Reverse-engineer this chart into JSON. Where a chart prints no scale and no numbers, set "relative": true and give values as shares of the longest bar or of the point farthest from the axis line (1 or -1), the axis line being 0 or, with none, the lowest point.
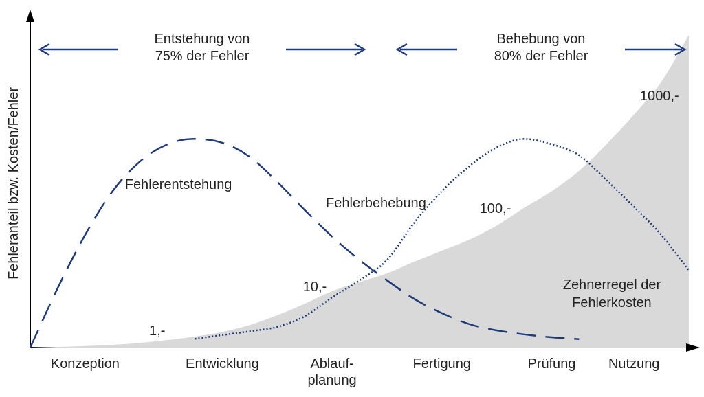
{
  "chart_data": {
    "type": "line",
    "relative": true,
    "ylabel": "Fehleranteil bzw. Kosten/Fehler",
    "categories": [
      null,
      null,
      "Konzeption",
      null,
      null,
      null,
      null,
      "Entwicklung",
      null,
      null,
      null,
      "Ablauf-\nplanung",
      null,
      null,
      null,
      "Fertigung",
      null,
      null,
      null,
      "Prüfung",
      null,
      null,
      "Nutzung",
      null,
      null
    ],
    "grid": false,
    "legend": false,
    "marker": "none",
    "series": [
      {
        "name": "Zehnerregel der Fehlerkosten",
        "type": "area",
        "color": "#d9d9d9",
        "values": [
          0,
          0.002,
          0.005,
          0.009,
          0.015,
          0.024,
          0.035,
          0.05,
          0.072,
          0.103,
          0.14,
          0.18,
          0.21,
          0.237,
          0.275,
          0.31,
          0.345,
          0.39,
          0.447,
          0.5,
          0.565,
          0.65,
          0.745,
          0.85,
          1
        ]
      },
      {
        "name": "Fehlerentstehung",
        "type": "line",
        "line_style": "dashed",
        "color": "#1f3c78",
        "values": [
          0,
          0.19,
          0.36,
          0.5,
          0.595,
          0.65,
          0.667,
          0.655,
          0.61,
          0.53,
          0.44,
          0.355,
          0.28,
          0.215,
          0.155,
          0.11,
          0.075,
          0.055,
          0.042,
          0.033,
          0.027,
          null,
          null,
          null,
          null
        ]
      },
      {
        "name": "Fehlerbehebung",
        "type": "line",
        "line_style": "dotted",
        "color": "#1f3c78",
        "values": [
          null,
          null,
          null,
          null,
          null,
          null,
          0.028,
          0.04,
          0.052,
          0.066,
          0.1,
          0.16,
          0.215,
          0.28,
          0.4,
          0.5,
          0.58,
          0.64,
          0.667,
          0.65,
          0.615,
          0.535,
          0.45,
          0.36,
          0.247
        ]
      }
    ],
    "annotations": [
      "Entstehung von\n75% der Fehler",
      "Behebung von\n80% der Fehler",
      "1,-",
      "10,-",
      "100,-",
      "1000,-"
    ]
  }
}
